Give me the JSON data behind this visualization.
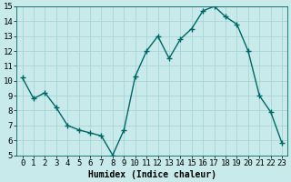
{
  "x": [
    0,
    1,
    2,
    3,
    4,
    5,
    6,
    7,
    8,
    9,
    10,
    11,
    12,
    13,
    14,
    15,
    16,
    17,
    18,
    19,
    20,
    21,
    22,
    23
  ],
  "y": [
    10.2,
    8.8,
    9.2,
    8.2,
    7.0,
    6.7,
    6.5,
    6.3,
    5.0,
    6.7,
    10.3,
    12.0,
    13.0,
    11.5,
    12.8,
    13.5,
    14.7,
    15.0,
    14.3,
    13.8,
    12.0,
    9.0,
    7.9,
    5.8
  ],
  "xlabel": "Humidex (Indice chaleur)",
  "ylim": [
    5,
    15
  ],
  "xlim_min": -0.5,
  "xlim_max": 23.5,
  "yticks": [
    5,
    6,
    7,
    8,
    9,
    10,
    11,
    12,
    13,
    14,
    15
  ],
  "xticks": [
    0,
    1,
    2,
    3,
    4,
    5,
    6,
    7,
    8,
    9,
    10,
    11,
    12,
    13,
    14,
    15,
    16,
    17,
    18,
    19,
    20,
    21,
    22,
    23
  ],
  "xtick_labels": [
    "0",
    "1",
    "2",
    "3",
    "4",
    "5",
    "6",
    "7",
    "8",
    "9",
    "10",
    "11",
    "12",
    "13",
    "14",
    "15",
    "16",
    "17",
    "18",
    "19",
    "20",
    "21",
    "22",
    "23"
  ],
  "line_color": "#006666",
  "marker_color": "#006666",
  "bg_color": "#c8eaea",
  "grid_color": "#aad4d4",
  "xlabel_fontsize": 7,
  "tick_fontsize": 6.5,
  "linewidth": 1.0,
  "markersize": 2.0
}
